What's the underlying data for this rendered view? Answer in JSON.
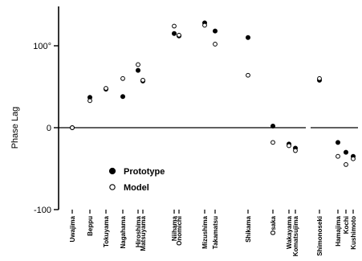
{
  "chart_data": {
    "type": "scatter",
    "ylabel": "Phase Lag",
    "yticks": [
      {
        "value": 100,
        "label": "100°"
      },
      {
        "value": 0,
        "label": "0"
      },
      {
        "value": -100,
        "label": "-100"
      }
    ],
    "ylim": [
      -100,
      150
    ],
    "categories": [
      "Uwajima",
      "Beppu",
      "Tokuyama",
      "Nagahama",
      "Hiroshima",
      "Matsuyama",
      "Niihama",
      "Onomichi",
      "Mizushima",
      "Takamatsu",
      "Shikama",
      "Osaka",
      "Wakayama",
      "Komatsujima",
      "Shimonoseki",
      "Hamajima",
      "Kochi",
      "Kushimoto"
    ],
    "series": [
      {
        "name": "Prototype",
        "marker": "filled",
        "values": [
          0,
          37,
          47,
          38,
          70,
          57,
          115,
          112,
          128,
          118,
          110,
          2,
          -20,
          -25,
          58,
          -18,
          -30,
          -35
        ]
      },
      {
        "name": "Model",
        "marker": "open",
        "values": [
          0,
          33,
          48,
          60,
          77,
          58,
          124,
          113,
          125,
          102,
          64,
          -18,
          -22,
          -28,
          60,
          -35,
          -45,
          -38
        ]
      }
    ],
    "legend_placement": "lower-left",
    "zero_line": true,
    "colors": {
      "ink": "#000000",
      "background": "#ffffff"
    }
  }
}
